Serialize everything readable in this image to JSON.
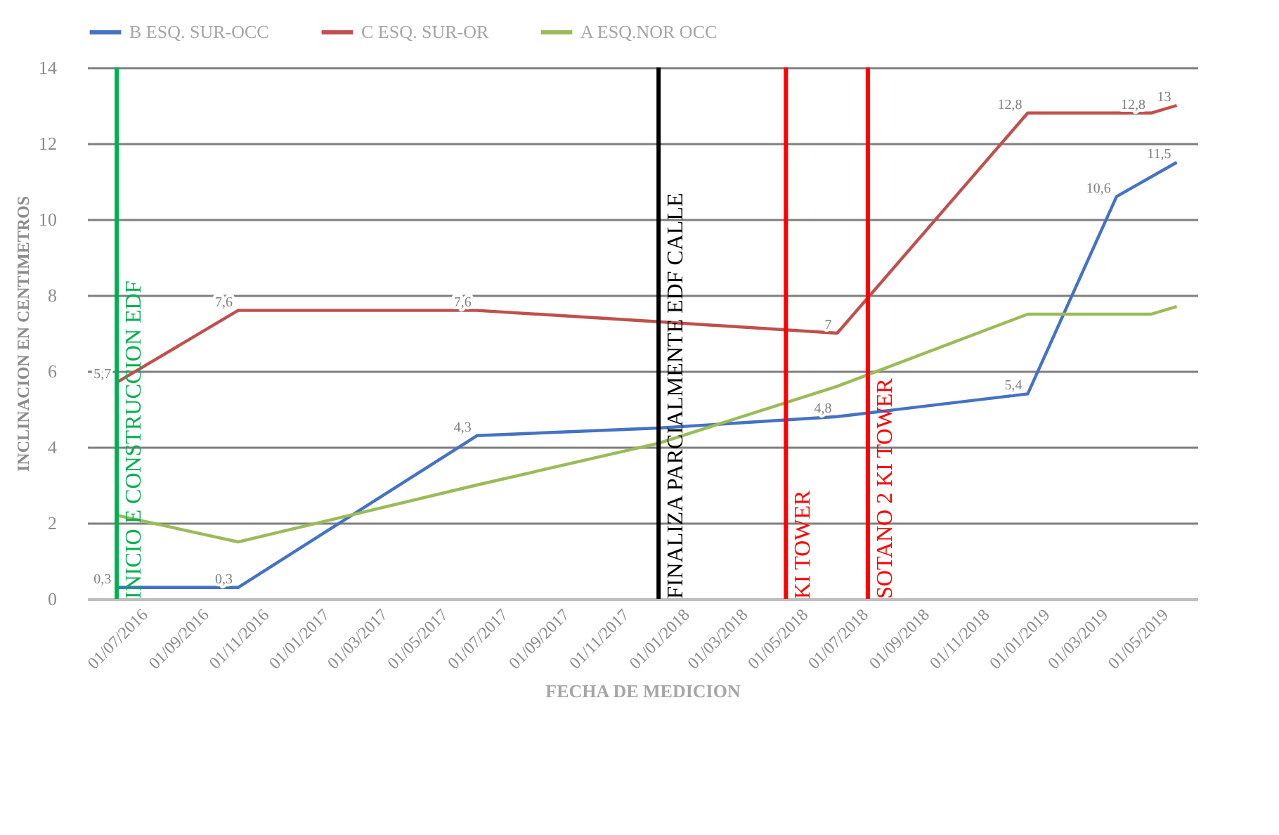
{
  "chart_data": {
    "type": "line",
    "xlabel": "FECHA DE MEDICION",
    "ylabel": "INCLINACION EN CENTIMETROS",
    "series": [
      {
        "name": "B ESQ. SUR-OCC",
        "color": "#4472c4",
        "x": [
          "2016-07-01",
          "2016-11-01",
          "2017-07-01",
          "2018-01-01",
          "2018-07-01",
          "2019-01-10",
          "2019-04-10",
          "2019-06-10"
        ],
        "values": [
          0.3,
          0.3,
          4.3,
          4.5,
          4.8,
          5.4,
          10.6,
          11.5
        ],
        "value_labels": [
          "0,3",
          "0,3",
          "4,3",
          null,
          "4,8",
          "5,4",
          "10,6",
          "11,5"
        ]
      },
      {
        "name": "C ESQ. SUR-OR",
        "color": "#c0504d",
        "x": [
          "2016-07-01",
          "2016-11-01",
          "2017-07-01",
          "2018-01-01",
          "2018-07-01",
          "2019-01-10",
          "2019-05-15",
          "2019-06-10"
        ],
        "values": [
          5.7,
          7.6,
          7.6,
          7.3,
          7.0,
          12.8,
          12.8,
          13.0
        ],
        "value_labels": [
          "5,7",
          "7,6",
          "7,6",
          null,
          "7",
          "12,8",
          "12,8",
          "13"
        ]
      },
      {
        "name": "A ESQ.NOR OCC",
        "color": "#9bbb59",
        "x": [
          "2016-07-01",
          "2016-11-01",
          "2017-07-01",
          "2018-01-01",
          "2018-07-01",
          "2019-01-10",
          "2019-05-15",
          "2019-06-10"
        ],
        "values": [
          2.2,
          1.5,
          3.0,
          4.1,
          5.6,
          7.5,
          7.5,
          7.7
        ]
      }
    ],
    "xlim": [
      "2016-06-01",
      "2019-07-01"
    ],
    "xticks": [
      {
        "value": "2016-07-01",
        "label": "01/07/2016"
      },
      {
        "value": "2016-09-01",
        "label": "01/09/2016"
      },
      {
        "value": "2016-11-01",
        "label": "01/11/2016"
      },
      {
        "value": "2017-01-01",
        "label": "01/01/2017"
      },
      {
        "value": "2017-03-01",
        "label": "01/03/2017"
      },
      {
        "value": "2017-05-01",
        "label": "01/05/2017"
      },
      {
        "value": "2017-07-01",
        "label": "01/07/2017"
      },
      {
        "value": "2017-09-01",
        "label": "01/09/2017"
      },
      {
        "value": "2017-11-01",
        "label": "01/11/2017"
      },
      {
        "value": "2018-01-01",
        "label": "01/01/2018"
      },
      {
        "value": "2018-03-01",
        "label": "01/03/2018"
      },
      {
        "value": "2018-05-01",
        "label": "01/05/2018"
      },
      {
        "value": "2018-07-01",
        "label": "01/07/2018"
      },
      {
        "value": "2018-09-01",
        "label": "01/09/2018"
      },
      {
        "value": "2018-11-01",
        "label": "01/11/2018"
      },
      {
        "value": "2019-01-01",
        "label": "01/01/2019"
      },
      {
        "value": "2019-03-01",
        "label": "01/03/2019"
      },
      {
        "value": "2019-05-01",
        "label": "01/05/2019"
      }
    ],
    "ylim": [
      0,
      14
    ],
    "yticks": [
      0,
      2,
      4,
      6,
      8,
      10,
      12,
      14
    ],
    "ref_lines": [
      {
        "axis": "x",
        "value": "2016-07-01",
        "label": "INICIO E CONSTRUCCION EDF",
        "color": "#00b050"
      },
      {
        "axis": "x",
        "value": "2018-01-01",
        "label": "FINALIZA PARCIALMENTE  EDF CALLE",
        "color": "#000000"
      },
      {
        "axis": "x",
        "value": "2018-05-10",
        "label": "KI TOWER",
        "color": "#ff0000"
      },
      {
        "axis": "x",
        "value": "2018-08-01",
        "label": "SOTANO 2 KI TOWER",
        "color": "#ff0000"
      }
    ],
    "grid": "y",
    "legend": "top",
    "marker": "none",
    "line_style": "solid"
  }
}
